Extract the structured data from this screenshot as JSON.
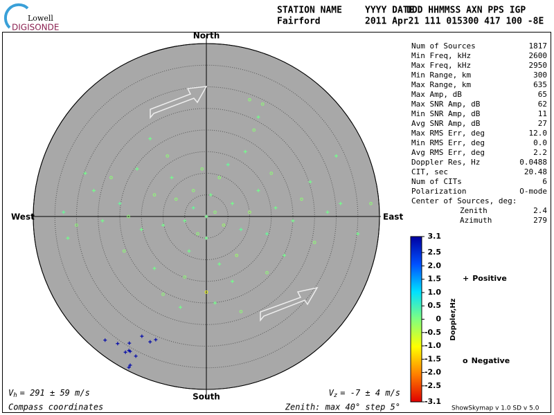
{
  "logo": {
    "top": "Lowell",
    "bottom": "DIGISONDE"
  },
  "header": {
    "columns": [
      "STATION NAME",
      "YYYY DATE",
      "DDD HHMMSS AXN PPS IGP"
    ],
    "values": [
      "Fairford",
      "2011 Apr21 111 015300 417 100 -8E"
    ]
  },
  "stats": [
    {
      "name": "Num of Sources",
      "value": "1817"
    },
    {
      "name": "Min Freq, kHz",
      "value": "2600"
    },
    {
      "name": "Max Freq, kHz",
      "value": "2950"
    },
    {
      "name": "Min Range, km",
      "value": "300"
    },
    {
      "name": "Max Range, km",
      "value": "635"
    },
    {
      "name": "Max Amp, dB",
      "value": "65"
    },
    {
      "name": "Max SNR Amp, dB",
      "value": "62"
    },
    {
      "name": "Min SNR Amp, dB",
      "value": "11"
    },
    {
      "name": "Avg SNR Amp, dB",
      "value": "27"
    },
    {
      "name": "Max RMS Err, deg",
      "value": "12.0"
    },
    {
      "name": "Min RMS Err, deg",
      "value": "0.0"
    },
    {
      "name": "Avg RMS Err, deg",
      "value": "2.2"
    },
    {
      "name": "Doppler Res, Hz",
      "value": "0.0488"
    },
    {
      "name": "CIT, sec",
      "value": "20.48"
    },
    {
      "name": "Num of CITs",
      "value": "6"
    },
    {
      "name": "Polarization",
      "value": "O-mode"
    }
  ],
  "center": {
    "title": "Center of Sources, deg:",
    "rows": [
      {
        "name": "Zenith",
        "value": "2.4"
      },
      {
        "name": "Azimuth",
        "value": "279"
      }
    ]
  },
  "footer": {
    "vh_symbol": "V",
    "vh_sub": "h",
    "vh_text": "= 291 ± 59 m/s",
    "vz_symbol": "V",
    "vz_sub": "z",
    "vz_text": "= -7 ± 4 m/s",
    "coords": "Compass coordinates",
    "zenith": "Zenith: max 40°  step 5°",
    "version": "ShowSkymap v 1.0  SD v 5.0"
  },
  "chart_data": {
    "type": "skymap",
    "directions": {
      "north": "North",
      "south": "South",
      "east": "East",
      "west": "West"
    },
    "rlim": [
      0,
      40
    ],
    "rticks": [
      5,
      10,
      15,
      20,
      25,
      30,
      35,
      40
    ],
    "colorbar": {
      "label": "Doppler,Hz",
      "lim": [
        -3.1,
        3.1
      ],
      "ticks": [
        3.1,
        2.5,
        {
          "value": 2,
          "label": "2.0"
        },
        1.5,
        {
          "value": 1,
          "label": "1.0"
        },
        0.5,
        0,
        -0.5,
        {
          "value": -1,
          "label": "-1.0"
        },
        -1.5,
        {
          "value": -2,
          "label": "-2.0"
        },
        -2.5,
        -3.1
      ],
      "colors": [
        "#0000a0",
        "#0050ff",
        "#00e0ff",
        "#80ff80",
        "#ffff00",
        "#ff8000",
        "#e00000"
      ]
    },
    "legend": {
      "positive": "Positive",
      "negative": "Negative",
      "positive_color": "#0000c0",
      "negative_color": "#d00000"
    },
    "points": {
      "east": [
        0,
        2,
        -3,
        4,
        -5,
        6,
        -7,
        8,
        -2,
        1,
        10,
        -10,
        12,
        -12,
        14,
        -15,
        3,
        -4,
        7,
        -8,
        16,
        -18,
        20,
        -20,
        22,
        -24,
        25,
        -26,
        28,
        -30,
        31,
        -33,
        38,
        -32,
        11,
        12,
        13,
        9,
        -9,
        -13,
        -28,
        30,
        -5,
        6,
        -12,
        14,
        -10,
        2,
        8,
        -6,
        0,
        15,
        -16,
        18,
        -19,
        5,
        -1,
        3,
        0,
        -3,
        24,
        -22,
        35,
        10,
        -23.4,
        -20.5,
        -17.8,
        -14.9,
        -13,
        -11.7,
        -17.9,
        -18.7,
        -17.6,
        -16.3,
        -17.6,
        -17.9
      ],
      "north": [
        0,
        1,
        2,
        -2,
        -1,
        3,
        4,
        -3,
        -4,
        5,
        1,
        -2,
        6,
        5,
        -4,
        -3,
        9,
        -8,
        -9,
        9,
        2,
        0,
        -1,
        3,
        4,
        -1,
        -6,
        6,
        1,
        -2,
        3,
        1,
        3,
        -5,
        20,
        23,
        26,
        15,
        14,
        18,
        10,
        14,
        -14,
        -15,
        -12,
        -13,
        -18,
        -20,
        -22,
        -21,
        -17.5,
        10,
        11,
        -9,
        -8,
        12,
        11,
        -11,
        -5,
        6,
        8,
        9,
        -4,
        27,
        -28.6,
        -29.4,
        -29.3,
        -27.7,
        -29,
        -28.5,
        -31,
        -31.4,
        -31.2,
        -32.3,
        -34.4,
        -34.9
      ],
      "doppler": [
        0.1,
        -0.1,
        0.2,
        -0.2,
        0.1,
        0.1,
        -0.1,
        0.2,
        -0.1,
        0.1,
        -0.2,
        0.1,
        0.1,
        -0.1,
        0.2,
        0.1,
        -0.1,
        0.1,
        -0.2,
        0.1,
        0.1,
        -0.1,
        0.1,
        0.2,
        -0.1,
        0.1,
        -0.1,
        0.1,
        0.1,
        -0.1,
        0.1,
        0.2,
        -0.1,
        0.1,
        -0.1,
        0.1,
        -0.1,
        0.1,
        -0.1,
        0.1,
        0.1,
        0.1,
        -0.1,
        0.1,
        0.1,
        -0.1,
        -0.1,
        0.1,
        -0.1,
        0.1,
        -0.9,
        -0.1,
        0.1,
        0.1,
        -0.1,
        0.2,
        -0.1,
        0.1,
        0.1,
        -0.1,
        0.1,
        -0.1,
        0.1,
        -0.1,
        3,
        3,
        3,
        3,
        3,
        3,
        3,
        3,
        3,
        3,
        3,
        3
      ]
    }
  }
}
